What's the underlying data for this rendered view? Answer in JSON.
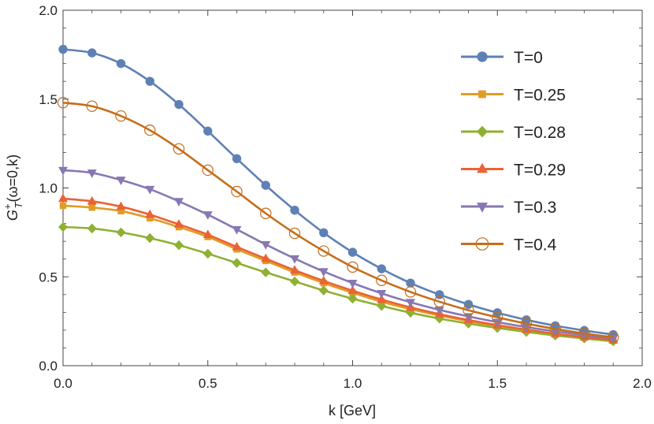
{
  "chart_data": {
    "type": "line",
    "title": "",
    "xlabel": "k [GeV]",
    "ylabel": {
      "base": "G",
      "superscript": "+",
      "subscript": "T",
      "args": "(ω=0,k)"
    },
    "xlim": [
      0,
      2
    ],
    "ylim": [
      0,
      2
    ],
    "x_ticks": [
      "0.0",
      "0.5",
      "1.0",
      "1.5",
      "2.0"
    ],
    "y_ticks": [
      "0.0",
      "0.5",
      "1.0",
      "1.5",
      "2.0"
    ],
    "grid": false,
    "legend_position": "top-right",
    "x": [
      0,
      0.1,
      0.2,
      0.3,
      0.4,
      0.5,
      0.6,
      0.7,
      0.8,
      0.9,
      1.0,
      1.1,
      1.2,
      1.3,
      1.4,
      1.5,
      1.6,
      1.7,
      1.8,
      1.9
    ],
    "series": [
      {
        "name": "T=0",
        "color": "#5E81B5",
        "marker": "circle",
        "values": [
          1.78,
          1.76,
          1.7,
          1.6,
          1.47,
          1.32,
          1.165,
          1.015,
          0.875,
          0.748,
          0.638,
          0.545,
          0.465,
          0.4,
          0.345,
          0.298,
          0.258,
          0.225,
          0.198,
          0.175
        ]
      },
      {
        "name": "T=0.25",
        "color": "#E19C24",
        "marker": "square",
        "values": [
          0.9,
          0.89,
          0.87,
          0.83,
          0.78,
          0.725,
          0.655,
          0.59,
          0.525,
          0.465,
          0.41,
          0.36,
          0.318,
          0.282,
          0.25,
          0.222,
          0.198,
          0.175,
          0.158,
          0.14
        ]
      },
      {
        "name": "T=0.28",
        "color": "#8FB032",
        "marker": "diamond",
        "values": [
          0.78,
          0.772,
          0.75,
          0.718,
          0.678,
          0.63,
          0.578,
          0.525,
          0.474,
          0.423,
          0.377,
          0.336,
          0.298,
          0.265,
          0.237,
          0.212,
          0.19,
          0.17,
          0.153,
          0.137
        ]
      },
      {
        "name": "T=0.29",
        "color": "#EB6235",
        "marker": "triangle-up",
        "values": [
          0.94,
          0.925,
          0.895,
          0.85,
          0.795,
          0.737,
          0.668,
          0.602,
          0.537,
          0.477,
          0.422,
          0.372,
          0.328,
          0.29,
          0.257,
          0.228,
          0.203,
          0.18,
          0.161,
          0.144
        ]
      },
      {
        "name": "T=0.3",
        "color": "#8778B3",
        "marker": "triangle-down",
        "values": [
          1.1,
          1.085,
          1.045,
          0.993,
          0.925,
          0.85,
          0.767,
          0.682,
          0.603,
          0.53,
          0.465,
          0.407,
          0.357,
          0.314,
          0.277,
          0.245,
          0.217,
          0.193,
          0.172,
          0.153
        ]
      },
      {
        "name": "T=0.4",
        "color": "#C56E1A",
        "marker": "open-circle",
        "values": [
          1.48,
          1.46,
          1.405,
          1.325,
          1.22,
          1.1,
          0.98,
          0.857,
          0.745,
          0.645,
          0.555,
          0.48,
          0.415,
          0.36,
          0.312,
          0.272,
          0.237,
          0.207,
          0.181,
          0.16
        ]
      }
    ]
  }
}
